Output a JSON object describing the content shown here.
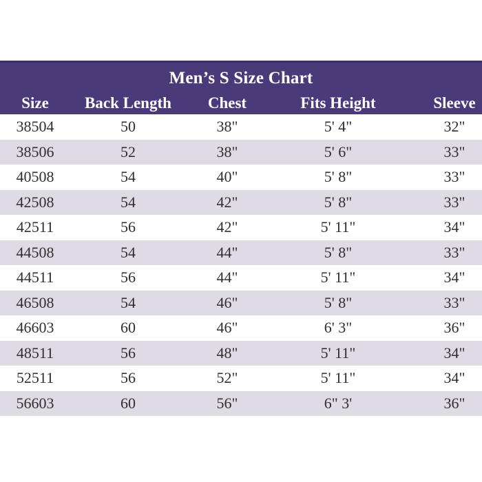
{
  "chart_data": {
    "type": "table",
    "title": "Men’s S Size Chart",
    "columns": [
      "Size",
      "Back Length",
      "Chest",
      "Fits Height",
      "Sleeve"
    ],
    "rows": [
      [
        "38504",
        "50",
        "38\"",
        "5' 4\"",
        "32\""
      ],
      [
        "38506",
        "52",
        "38\"",
        "5' 6\"",
        "33\""
      ],
      [
        "40508",
        "54",
        "40\"",
        "5' 8\"",
        "33\""
      ],
      [
        "42508",
        "54",
        "42\"",
        "5' 8\"",
        "33\""
      ],
      [
        "42511",
        "56",
        "42\"",
        "5' 11\"",
        "34\""
      ],
      [
        "44508",
        "54",
        "44\"",
        "5' 8\"",
        "33\""
      ],
      [
        "44511",
        "56",
        "44\"",
        "5' 11\"",
        "34\""
      ],
      [
        "46508",
        "54",
        "46\"",
        "5' 8\"",
        "33\""
      ],
      [
        "46603",
        "60",
        "46\"",
        "6' 3\"",
        "36\""
      ],
      [
        "48511",
        "56",
        "48\"",
        "5' 11\"",
        "34\""
      ],
      [
        "52511",
        "56",
        "52\"",
        "5' 11\"",
        "34\""
      ],
      [
        "56603",
        "60",
        "56\"",
        "6\" 3'",
        "36\""
      ]
    ],
    "layout": {
      "row_striping": "white and lavender alternating, first data row white",
      "header_position": "top band with centered title above column headers",
      "grid": "off"
    },
    "colors": {
      "header_bg": "#4a3a7a",
      "header_top": "#3c2f63",
      "header_text": "#ffffff",
      "row_alt": "#dedbe4",
      "row_bg": "#ffffff",
      "body_text": "#2f2e30"
    }
  }
}
